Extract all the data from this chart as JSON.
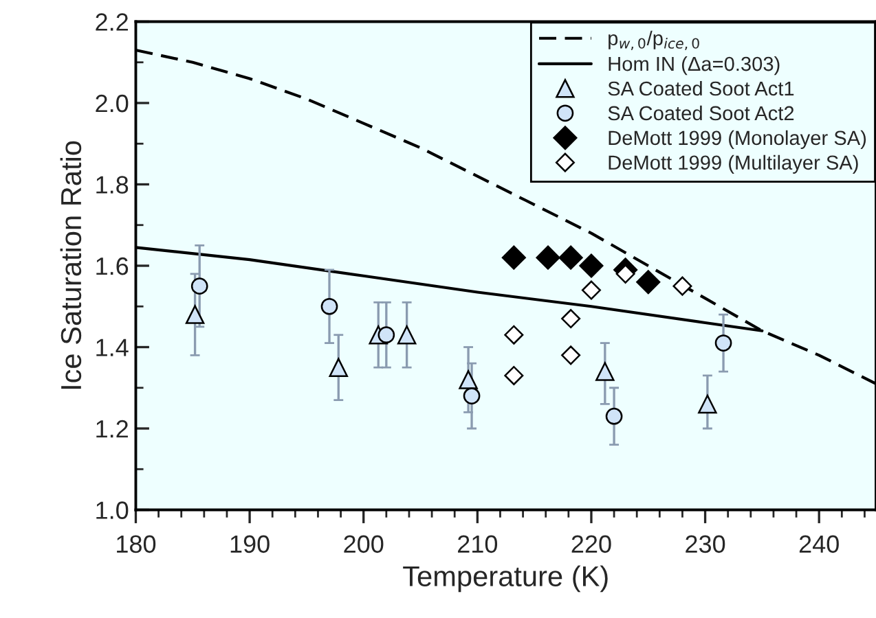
{
  "chart_data": {
    "type": "scatter",
    "xlabel": "Temperature (K)",
    "ylabel": "Ice Saturation Ratio",
    "xlim": [
      180,
      245
    ],
    "xticks": [
      180,
      190,
      200,
      210,
      220,
      230,
      240
    ],
    "ylim": [
      1.0,
      2.2
    ],
    "yticks": [
      {
        "value": 1.0,
        "label": "1.0"
      },
      {
        "value": 1.2,
        "label": "1.2"
      },
      {
        "value": 1.4,
        "label": "1.4"
      },
      {
        "value": 1.6,
        "label": "1.6"
      },
      {
        "value": 1.8,
        "label": "1.8"
      },
      {
        "value": 2.0,
        "label": "2.0"
      },
      {
        "value": 2.2,
        "label": "2.2"
      }
    ],
    "grid": false,
    "legend": "top right",
    "series": [
      {
        "name": "p$_{w,0}$/p$_{ice,0}$",
        "type": "line",
        "line_style": "dashed",
        "marker": "none",
        "color": "#000000",
        "x": [
          180,
          185,
          190,
          195,
          200,
          205,
          210,
          215,
          220,
          225,
          230,
          235,
          240,
          245
        ],
        "values": [
          2.13,
          2.1,
          2.06,
          2.01,
          1.95,
          1.89,
          1.82,
          1.75,
          1.68,
          1.6,
          1.52,
          1.44,
          1.38,
          1.31
        ]
      },
      {
        "name": "Hom IN (Δa=0.303)",
        "type": "line",
        "line_style": "solid",
        "marker": "none",
        "color": "#000000",
        "x": [
          180,
          190,
          200,
          210,
          220,
          230,
          235
        ],
        "values": [
          1.645,
          1.615,
          1.575,
          1.535,
          1.5,
          1.46,
          1.44
        ]
      },
      {
        "name": "SA Coated Soot Act1",
        "marker": "triangle",
        "color": "#d0e4f8",
        "x": [
          185.2,
          197.8,
          201.3,
          203.8,
          209.2,
          221.2,
          230.2
        ],
        "values": [
          1.48,
          1.35,
          1.43,
          1.43,
          1.32,
          1.34,
          1.26
        ],
        "errors": [
          [
            1.38,
            1.58
          ],
          [
            1.27,
            1.43
          ],
          [
            1.35,
            1.51
          ],
          [
            1.35,
            1.51
          ],
          [
            1.24,
            1.4
          ],
          [
            1.26,
            1.41
          ],
          [
            1.2,
            1.33
          ]
        ]
      },
      {
        "name": "SA Coated Soot Act2",
        "marker": "circle",
        "color": "#d0e4f8",
        "x": [
          185.6,
          197.0,
          202.0,
          209.5,
          222.0,
          231.6
        ],
        "values": [
          1.55,
          1.5,
          1.43,
          1.28,
          1.23,
          1.41
        ],
        "errors": [
          [
            1.45,
            1.65
          ],
          [
            1.41,
            1.59
          ],
          [
            1.35,
            1.51
          ],
          [
            1.2,
            1.36
          ],
          [
            1.16,
            1.3
          ],
          [
            1.34,
            1.48
          ]
        ]
      },
      {
        "name": "DeMott 1999 (Monolayer SA)",
        "marker": "diamond",
        "color": "#000000",
        "x": [
          213.2,
          216.2,
          218.2,
          220.0,
          223.0,
          225.0
        ],
        "values": [
          1.62,
          1.62,
          1.62,
          1.6,
          1.59,
          1.56
        ]
      },
      {
        "name": "DeMott 1999 (Multilayer SA)",
        "marker": "diamond",
        "color": "#ffffff",
        "x": [
          213.2,
          213.2,
          218.2,
          218.2,
          220.0,
          223.0,
          228.0
        ],
        "values": [
          1.43,
          1.33,
          1.47,
          1.38,
          1.54,
          1.58,
          1.55
        ]
      }
    ]
  }
}
